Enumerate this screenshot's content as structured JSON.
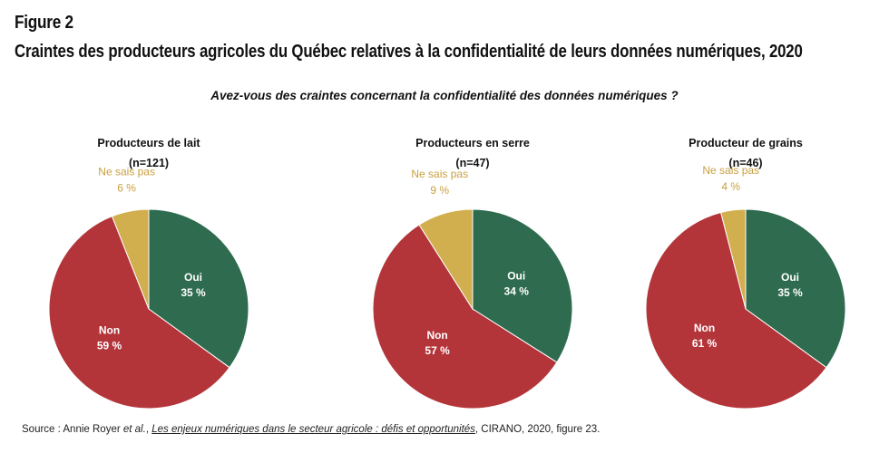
{
  "figure_label": "Figure 2",
  "title": "Craintes des producteurs agricoles du Québec relatives à la confidentialité de leurs données numériques, 2020",
  "question": "Avez-vous des craintes concernant la confidentialité des données numériques ?",
  "source": {
    "prefix": "Source : Annie Royer ",
    "etal": "et al.",
    "sep": ", ",
    "publication": "Les enjeux numériques dans le secteur agricole : défis et opportunités",
    "suffix": ", CIRANO, 2020, figure 23."
  },
  "colors": {
    "oui": "#2e6b4f",
    "non": "#b3353a",
    "nsp": "#d1ae4e",
    "nsp_label": "#c9a03f"
  },
  "chart_data": [
    {
      "type": "pie",
      "title": "Producteurs de lait",
      "n": "(n=121)",
      "slices": [
        {
          "label": "Oui",
          "value": 35,
          "value_label": "35 %"
        },
        {
          "label": "Non",
          "value": 59,
          "value_label": "59 %"
        },
        {
          "label": "Ne sais pas",
          "value": 6,
          "value_label": "6 %"
        }
      ]
    },
    {
      "type": "pie",
      "title": "Producteurs en serre",
      "n": "(n=47)",
      "slices": [
        {
          "label": "Oui",
          "value": 34,
          "value_label": "34 %"
        },
        {
          "label": "Non",
          "value": 57,
          "value_label": "57 %"
        },
        {
          "label": "Ne sais pas",
          "value": 9,
          "value_label": "9 %"
        }
      ]
    },
    {
      "type": "pie",
      "title": "Producteur de grains",
      "n": "(n=46)",
      "slices": [
        {
          "label": "Oui",
          "value": 35,
          "value_label": "35 %"
        },
        {
          "label": "Non",
          "value": 61,
          "value_label": "61 %"
        },
        {
          "label": "Ne sais pas",
          "value": 4,
          "value_label": "4 %"
        }
      ]
    }
  ]
}
